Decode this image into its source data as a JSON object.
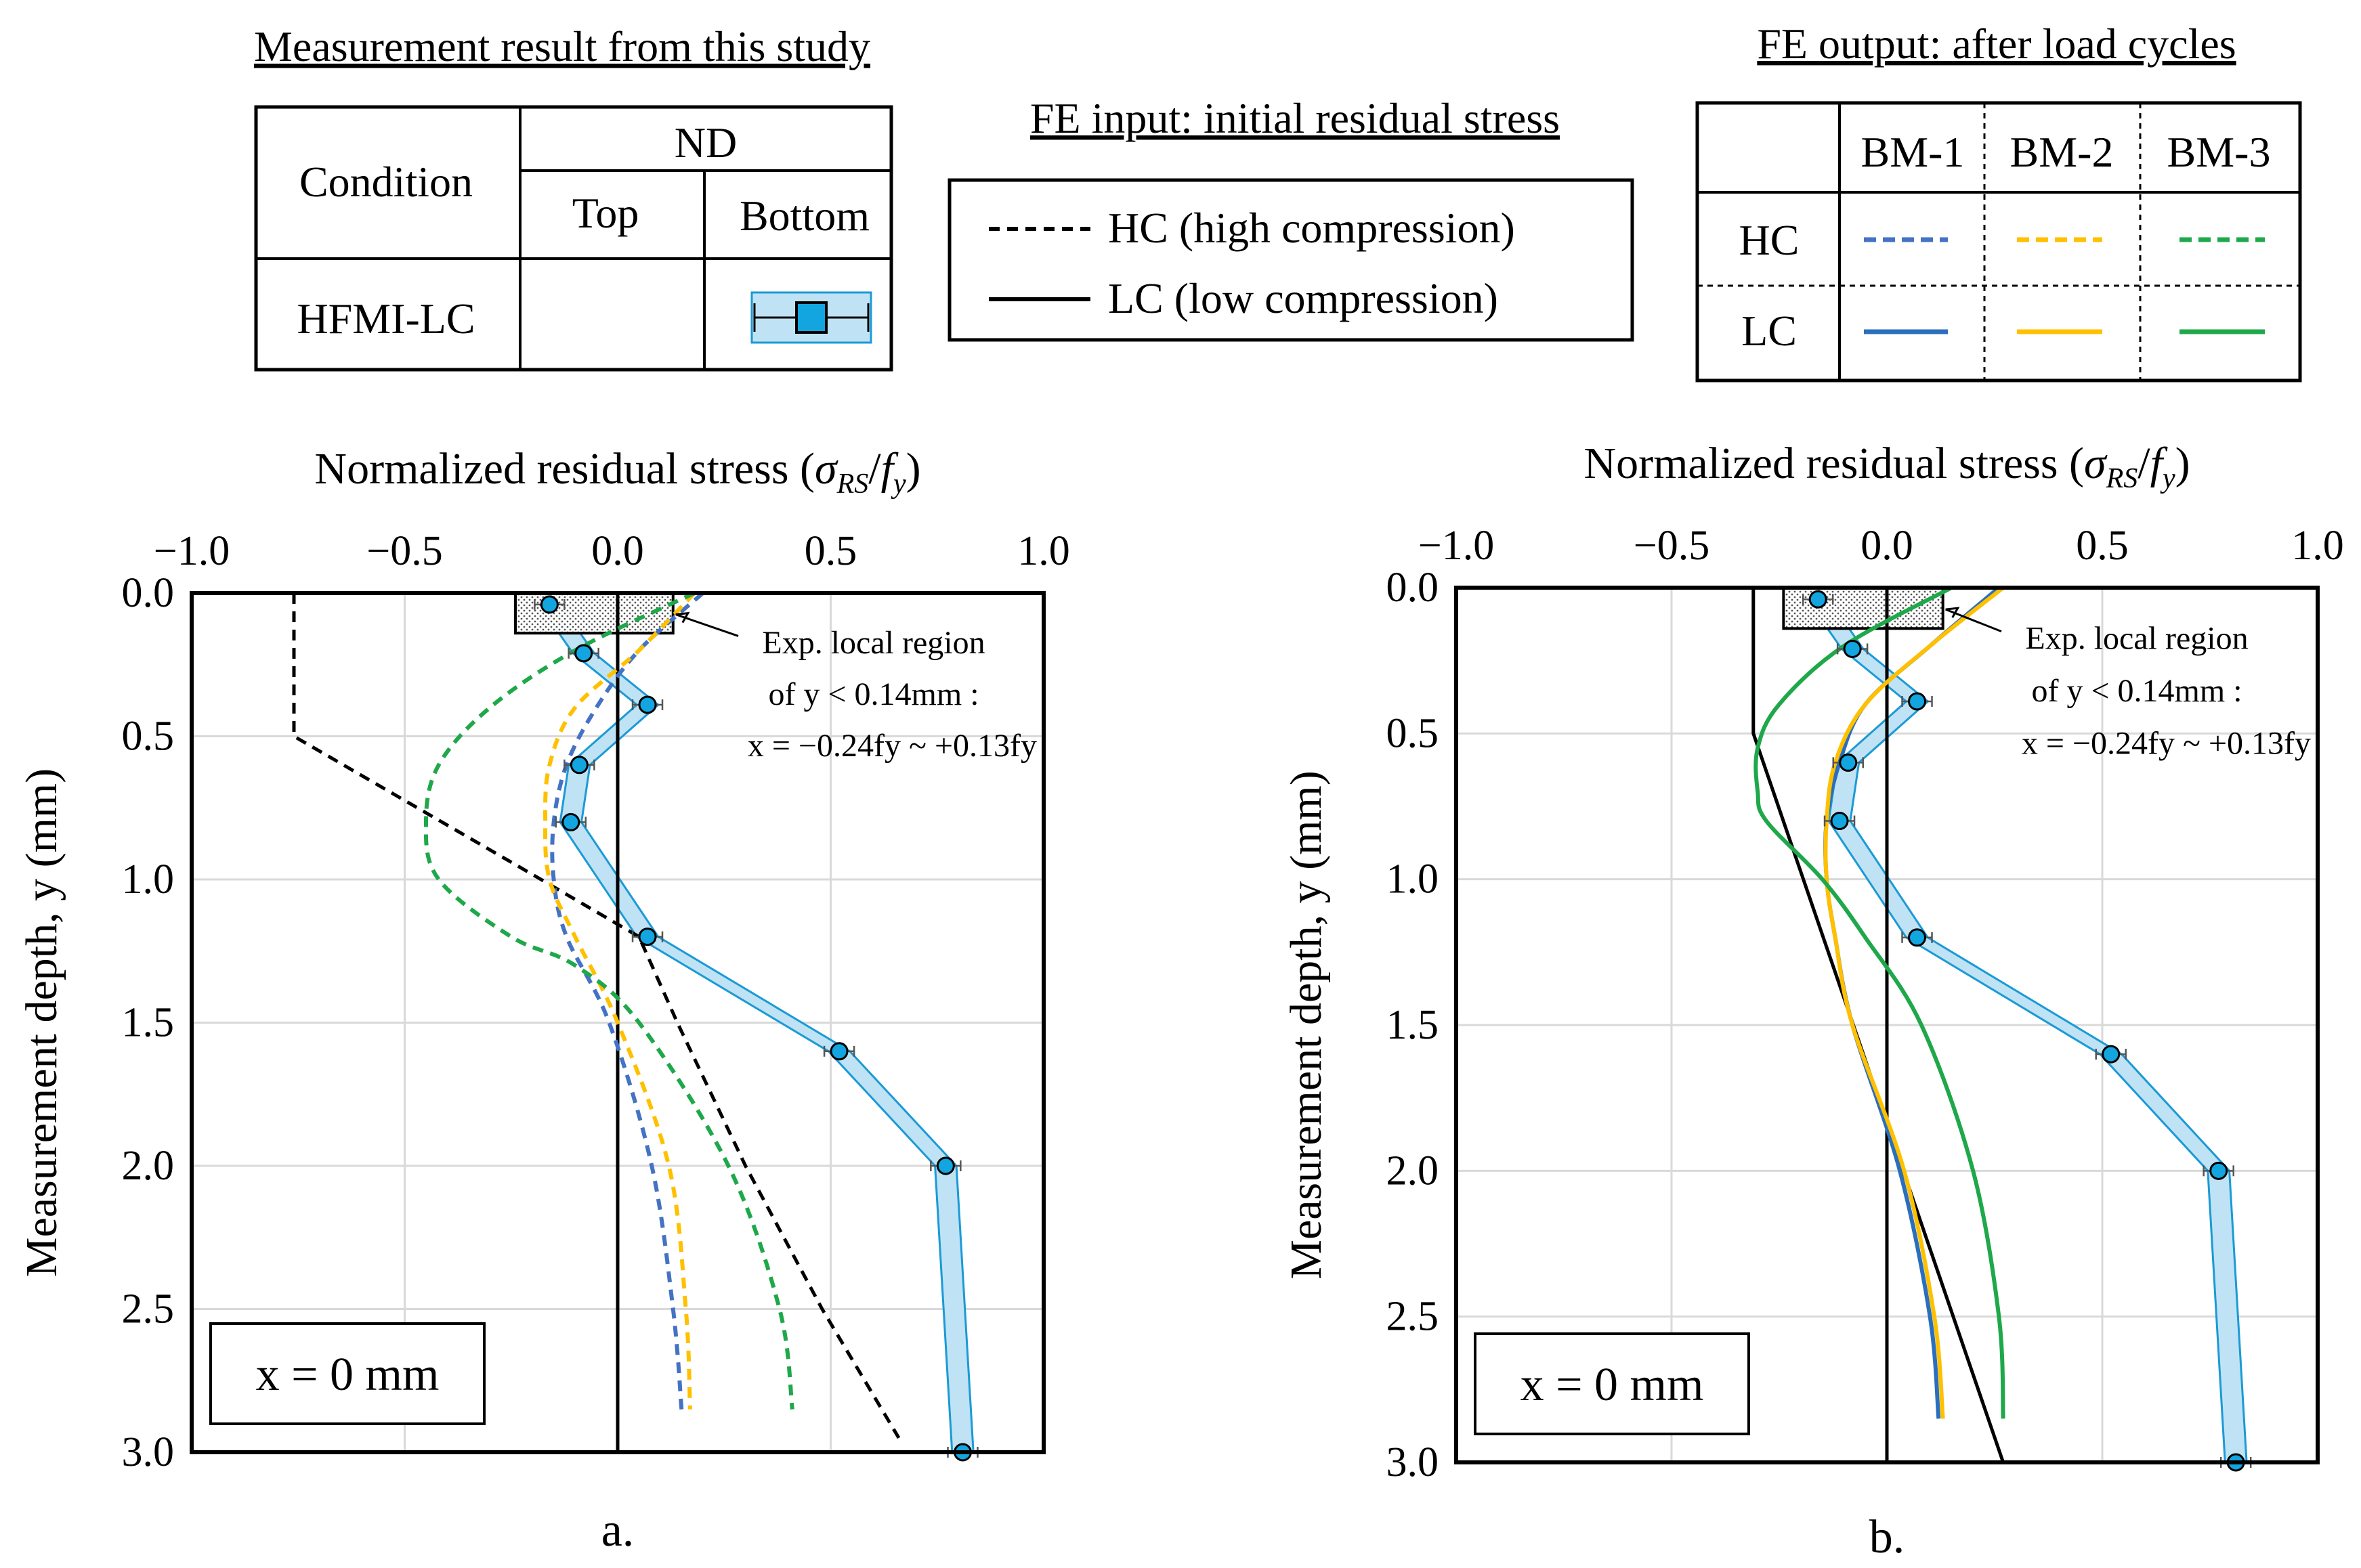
{
  "legend_measurement": {
    "title": "Measurement result from this study",
    "col_condition": "Condition",
    "col_nd": "ND",
    "col_top": "Top",
    "col_bottom": "Bottom",
    "row_label": "HFMI-LC"
  },
  "legend_fe_input": {
    "title": "FE input: initial residual stress",
    "hc_label": "HC (high compression)",
    "lc_label": "LC (low compression)"
  },
  "legend_fe_output": {
    "title": "FE output: after load cycles",
    "cols": [
      "BM-1",
      "BM-2",
      "BM-3"
    ],
    "rows": [
      "HC",
      "LC"
    ]
  },
  "colors": {
    "bm1": "#2a6fbd",
    "bm1_dash": "#4472c4",
    "bm2": "#ffc000",
    "bm3": "#1ea84a",
    "measure_edge": "#1b9ad6",
    "measure_fill": "#bfe3f4",
    "measure_marker": "#12a5e0",
    "grid": "#d9d9d9"
  },
  "chart_data": [
    {
      "type": "line",
      "panel_label": "a.",
      "xlabel_prefix": "Normalized residual stress (",
      "xlabel_sigma": "σ",
      "xlabel_sub1": "RS",
      "xlabel_f": "f",
      "xlabel_sub2": "y",
      "ylabel": "Measurement depth, y (mm)",
      "xlim": [
        -1.0,
        1.0
      ],
      "ylim": [
        0.0,
        3.0
      ],
      "xticks": [
        "−1.0",
        "−0.5",
        "0.0",
        "0.5",
        "1.0"
      ],
      "yticks": [
        "0.0",
        "0.5",
        "1.0",
        "1.5",
        "2.0",
        "2.5",
        "3.0"
      ],
      "position_note": "x = 0 mm",
      "annotation": {
        "line1": "Exp. local region",
        "line2": "of y < 0.14mm :",
        "line3": "x = −0.24fy ~ +0.13fy"
      },
      "measured": {
        "name": "HFMI-LC Bottom",
        "y": [
          0.04,
          0.21,
          0.39,
          0.6,
          0.8,
          1.2,
          1.6,
          2.0,
          3.0
        ],
        "x": [
          -0.16,
          -0.08,
          0.07,
          -0.09,
          -0.11,
          0.07,
          0.52,
          0.77,
          0.81
        ]
      },
      "series": [
        {
          "name": "HC input",
          "style": "dashed",
          "color": "#000000",
          "y": [
            0.0,
            0.5,
            1.0,
            1.2,
            1.5,
            2.0,
            2.5,
            2.95
          ],
          "x": [
            -0.76,
            -0.76,
            -0.18,
            0.05,
            0.14,
            0.3,
            0.48,
            0.66
          ]
        },
        {
          "name": "LC input",
          "style": "solid",
          "color": "#000000",
          "y": [
            0.0,
            3.0
          ],
          "x": [
            0.0,
            0.0
          ]
        },
        {
          "name": "BM-1 HC",
          "style": "dashed",
          "color": "#4472c4",
          "y": [
            0.0,
            0.2,
            0.4,
            0.6,
            0.8,
            1.0,
            1.2,
            1.5,
            2.0,
            2.5,
            2.85
          ],
          "x": [
            0.2,
            0.05,
            -0.05,
            -0.12,
            -0.15,
            -0.15,
            -0.12,
            -0.02,
            0.08,
            0.13,
            0.15
          ]
        },
        {
          "name": "BM-2 HC",
          "style": "dashed",
          "color": "#ffc000",
          "y": [
            0.0,
            0.2,
            0.4,
            0.6,
            0.8,
            1.0,
            1.2,
            1.5,
            2.0,
            2.5,
            2.85
          ],
          "x": [
            0.18,
            0.05,
            -0.1,
            -0.16,
            -0.17,
            -0.16,
            -0.1,
            0.0,
            0.12,
            0.16,
            0.17
          ]
        },
        {
          "name": "BM-3 HC",
          "style": "dashed",
          "color": "#1ea84a",
          "y": [
            0.0,
            0.2,
            0.4,
            0.6,
            0.8,
            1.0,
            1.2,
            1.3,
            1.5,
            2.0,
            2.5,
            2.85
          ],
          "x": [
            0.18,
            -0.1,
            -0.3,
            -0.42,
            -0.45,
            -0.42,
            -0.25,
            -0.1,
            0.05,
            0.26,
            0.38,
            0.41
          ]
        }
      ]
    },
    {
      "type": "line",
      "panel_label": "b.",
      "xlabel_prefix": "Normalized residual stress (",
      "xlabel_sigma": "σ",
      "xlabel_sub1": "RS",
      "xlabel_f": "f",
      "xlabel_sub2": "y",
      "ylabel": "Measurement depth, y (mm)",
      "xlim": [
        -1.0,
        1.0
      ],
      "ylim": [
        0.0,
        3.0
      ],
      "xticks": [
        "−1.0",
        "−0.5",
        "0.0",
        "0.5",
        "1.0"
      ],
      "yticks": [
        "0.0",
        "0.5",
        "1.0",
        "1.5",
        "2.0",
        "2.5",
        "3.0"
      ],
      "position_note": "x = 0 mm",
      "annotation": {
        "line1": "Exp. local region",
        "line2": "of y < 0.14mm :",
        "line3": "x = −0.24fy ~ +0.13fy"
      },
      "measured": {
        "name": "HFMI-LC Bottom",
        "y": [
          0.04,
          0.21,
          0.39,
          0.6,
          0.8,
          1.2,
          1.6,
          2.0,
          3.0
        ],
        "x": [
          -0.16,
          -0.08,
          0.07,
          -0.09,
          -0.11,
          0.07,
          0.52,
          0.77,
          0.81
        ]
      },
      "series": [
        {
          "name": "HC input",
          "style": "solid",
          "color": "#000000",
          "y": [
            0.0,
            0.5,
            3.0
          ],
          "x": [
            -0.31,
            -0.31,
            0.27
          ]
        },
        {
          "name": "LC input",
          "style": "solid",
          "color": "#000000",
          "y": [
            0.0,
            3.0
          ],
          "x": [
            0.0,
            0.0
          ]
        },
        {
          "name": "BM-1 LC",
          "style": "solid",
          "color": "#2a6fbd",
          "y": [
            0.0,
            0.2,
            0.4,
            0.6,
            0.8,
            1.0,
            1.2,
            1.5,
            2.0,
            2.5,
            2.85
          ],
          "x": [
            0.26,
            0.1,
            -0.05,
            -0.11,
            -0.14,
            -0.14,
            -0.12,
            -0.08,
            0.03,
            0.1,
            0.12
          ]
        },
        {
          "name": "BM-2 LC",
          "style": "solid",
          "color": "#ffc000",
          "y": [
            0.0,
            0.2,
            0.4,
            0.6,
            0.8,
            1.0,
            1.2,
            1.5,
            2.0,
            2.5,
            2.85
          ],
          "x": [
            0.27,
            0.1,
            -0.05,
            -0.12,
            -0.14,
            -0.14,
            -0.12,
            -0.08,
            0.04,
            0.11,
            0.13
          ]
        },
        {
          "name": "BM-3 LC",
          "style": "solid",
          "color": "#1ea84a",
          "y": [
            0.0,
            0.2,
            0.4,
            0.55,
            0.7,
            0.8,
            1.0,
            1.2,
            1.5,
            2.0,
            2.5,
            2.85
          ],
          "x": [
            0.15,
            -0.1,
            -0.25,
            -0.3,
            -0.3,
            -0.28,
            -0.15,
            -0.05,
            0.08,
            0.2,
            0.26,
            0.27
          ]
        }
      ]
    }
  ]
}
